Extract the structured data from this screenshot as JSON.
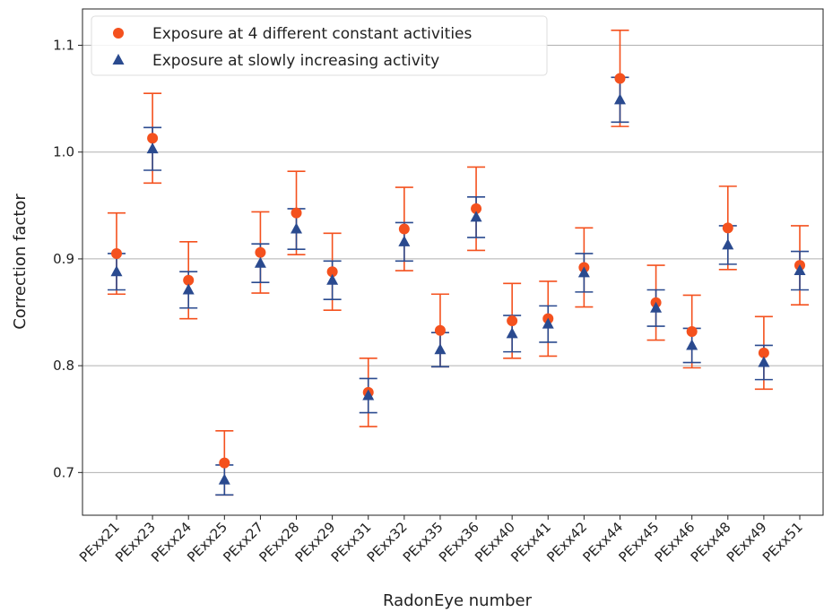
{
  "chart_data": {
    "type": "errorbar-scatter",
    "xlabel": "RadonEye number",
    "ylabel": "Correction factor",
    "categories": [
      "PExx21",
      "PExx23",
      "PExx24",
      "PExx25",
      "PExx27",
      "PExx28",
      "PExx29",
      "PExx31",
      "PExx32",
      "PExx35",
      "PExx36",
      "PExx40",
      "PExx41",
      "PExx42",
      "PExx44",
      "PExx45",
      "PExx46",
      "PExx48",
      "PExx49",
      "PExx51"
    ],
    "series": [
      {
        "name": "Exposure at 4 different constant activities",
        "color": "#f4511e",
        "marker": "circle",
        "values": [
          0.905,
          1.013,
          0.88,
          0.709,
          0.906,
          0.943,
          0.888,
          0.775,
          0.928,
          0.833,
          0.947,
          0.842,
          0.844,
          0.892,
          1.069,
          0.859,
          0.832,
          0.929,
          0.812,
          0.894
        ],
        "errors": [
          0.038,
          0.042,
          0.036,
          0.03,
          0.038,
          0.039,
          0.036,
          0.032,
          0.039,
          0.034,
          0.039,
          0.035,
          0.035,
          0.037,
          0.045,
          0.035,
          0.034,
          0.039,
          0.034,
          0.037
        ]
      },
      {
        "name": "Exposure at slowly increasing activity",
        "color": "#2a4a8f",
        "marker": "triangle",
        "values": [
          0.888,
          1.003,
          0.871,
          0.693,
          0.896,
          0.928,
          0.88,
          0.772,
          0.916,
          0.815,
          0.939,
          0.83,
          0.839,
          0.887,
          1.049,
          0.854,
          0.819,
          0.913,
          0.803,
          0.889
        ],
        "errors": [
          0.017,
          0.02,
          0.017,
          0.014,
          0.018,
          0.019,
          0.018,
          0.016,
          0.018,
          0.016,
          0.019,
          0.017,
          0.017,
          0.018,
          0.021,
          0.017,
          0.016,
          0.018,
          0.016,
          0.018
        ]
      }
    ],
    "ylim": [
      0.66,
      1.134
    ],
    "yticks": [
      0.7,
      0.8,
      0.9,
      {
        "value": 1.0,
        "label": "1.0"
      },
      1.1
    ],
    "grid": "y",
    "legend": "upper left"
  }
}
